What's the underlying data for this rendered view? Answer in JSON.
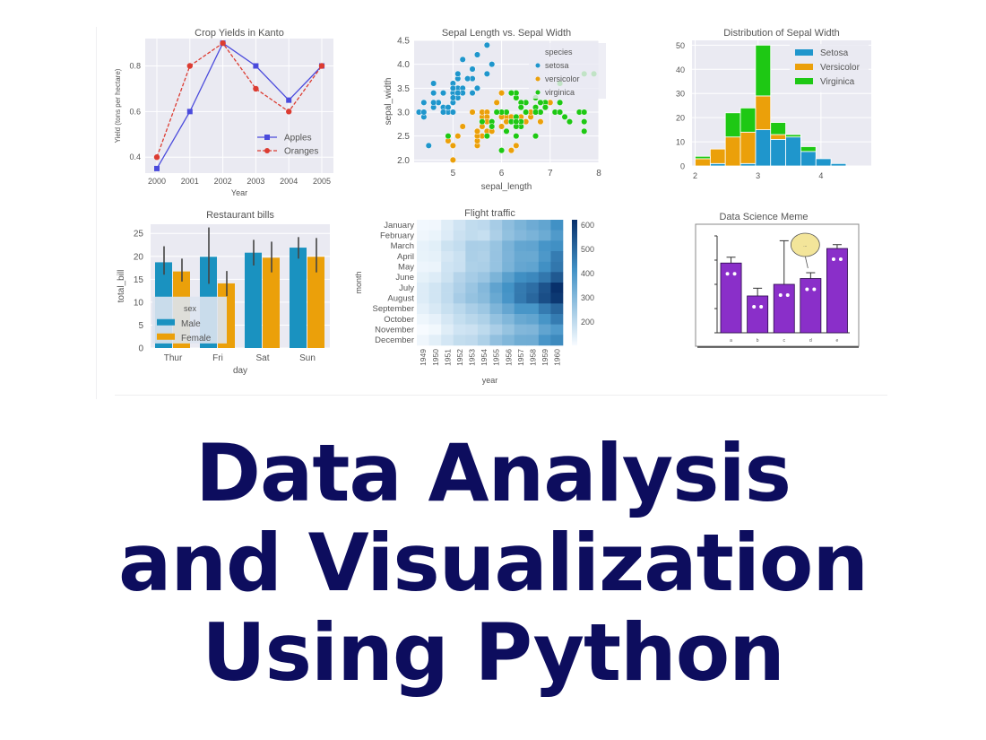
{
  "slide": {
    "title_lines": [
      "Data Analysis",
      "and Visualization",
      "Using Python"
    ],
    "title_color": "#0d0d5e"
  },
  "chart_data": [
    {
      "id": "crop-yields",
      "type": "line",
      "title": "Crop Yields in Kanto",
      "xlabel": "Year",
      "ylabel": "Yield (tons per hectare)",
      "x": [
        2000,
        2001,
        2002,
        2003,
        2004,
        2005
      ],
      "yticks": [
        0.4,
        0.6,
        0.8
      ],
      "ylim": [
        0.33,
        0.92
      ],
      "series": [
        {
          "name": "Apples",
          "values": [
            0.35,
            0.6,
            0.9,
            0.8,
            0.65,
            0.8
          ],
          "color": "#4b4bdc",
          "style": "solid",
          "marker": "s"
        },
        {
          "name": "Oranges",
          "values": [
            0.4,
            0.8,
            0.9,
            0.7,
            0.6,
            0.8
          ],
          "color": "#dc3c32",
          "style": "dashed",
          "marker": "o"
        }
      ],
      "legend_position": "lower right",
      "grid": true
    },
    {
      "id": "sepal-scatter",
      "type": "scatter",
      "title": "Sepal Length vs. Sepal Width",
      "xlabel": "sepal_length",
      "ylabel": "sepal_width",
      "xticks": [
        5,
        6,
        7,
        8
      ],
      "yticks": [
        2.0,
        2.5,
        3.0,
        3.5,
        4.0,
        4.5
      ],
      "xlim": [
        4.2,
        8.0
      ],
      "ylim": [
        1.95,
        4.5
      ],
      "legend_title": "species",
      "legend_position": "upper right",
      "series": [
        {
          "name": "setosa",
          "color": "#1f96cc",
          "points": [
            [
              5.1,
              3.5
            ],
            [
              4.9,
              3.0
            ],
            [
              4.7,
              3.2
            ],
            [
              4.6,
              3.1
            ],
            [
              5.0,
              3.6
            ],
            [
              5.4,
              3.9
            ],
            [
              4.6,
              3.4
            ],
            [
              5.0,
              3.4
            ],
            [
              4.4,
              2.9
            ],
            [
              4.9,
              3.1
            ],
            [
              5.4,
              3.7
            ],
            [
              4.8,
              3.4
            ],
            [
              4.8,
              3.0
            ],
            [
              4.3,
              3.0
            ],
            [
              5.8,
              4.0
            ],
            [
              5.7,
              4.4
            ],
            [
              5.4,
              3.9
            ],
            [
              5.1,
              3.5
            ],
            [
              5.7,
              3.8
            ],
            [
              5.1,
              3.8
            ],
            [
              5.4,
              3.4
            ],
            [
              5.1,
              3.7
            ],
            [
              4.6,
              3.6
            ],
            [
              5.1,
              3.3
            ],
            [
              4.8,
              3.4
            ],
            [
              5.0,
              3.0
            ],
            [
              5.0,
              3.4
            ],
            [
              5.2,
              3.5
            ],
            [
              5.2,
              3.4
            ],
            [
              4.7,
              3.2
            ],
            [
              4.8,
              3.1
            ],
            [
              5.4,
              3.4
            ],
            [
              5.2,
              4.1
            ],
            [
              5.5,
              4.2
            ],
            [
              4.9,
              3.1
            ],
            [
              5.0,
              3.2
            ],
            [
              5.5,
              3.5
            ],
            [
              4.4,
              3.0
            ],
            [
              5.1,
              3.4
            ],
            [
              5.0,
              3.5
            ],
            [
              4.5,
              2.3
            ],
            [
              4.4,
              3.2
            ],
            [
              5.0,
              3.5
            ],
            [
              5.1,
              3.8
            ],
            [
              4.8,
              3.0
            ],
            [
              5.1,
              3.8
            ],
            [
              4.6,
              3.2
            ],
            [
              5.3,
              3.7
            ],
            [
              5.0,
              3.3
            ]
          ]
        },
        {
          "name": "versicolor",
          "color": "#eba00a",
          "points": [
            [
              7.0,
              3.2
            ],
            [
              6.4,
              3.2
            ],
            [
              6.9,
              3.1
            ],
            [
              5.5,
              2.3
            ],
            [
              6.5,
              2.8
            ],
            [
              5.7,
              2.8
            ],
            [
              6.3,
              3.3
            ],
            [
              4.9,
              2.4
            ],
            [
              6.6,
              2.9
            ],
            [
              5.2,
              2.7
            ],
            [
              5.0,
              2.0
            ],
            [
              5.9,
              3.0
            ],
            [
              6.0,
              2.2
            ],
            [
              6.1,
              2.9
            ],
            [
              5.6,
              2.9
            ],
            [
              6.7,
              3.1
            ],
            [
              5.6,
              3.0
            ],
            [
              5.8,
              2.7
            ],
            [
              6.2,
              2.2
            ],
            [
              5.6,
              2.5
            ],
            [
              5.9,
              3.2
            ],
            [
              6.1,
              2.8
            ],
            [
              6.3,
              2.5
            ],
            [
              6.1,
              2.8
            ],
            [
              6.4,
              2.9
            ],
            [
              6.6,
              3.0
            ],
            [
              6.8,
              2.8
            ],
            [
              6.7,
              3.0
            ],
            [
              6.0,
              2.9
            ],
            [
              5.7,
              2.6
            ],
            [
              5.5,
              2.4
            ],
            [
              5.5,
              2.4
            ],
            [
              5.8,
              2.7
            ],
            [
              6.0,
              2.7
            ],
            [
              5.4,
              3.0
            ],
            [
              6.0,
              3.4
            ],
            [
              6.7,
              3.1
            ],
            [
              6.3,
              2.3
            ],
            [
              5.6,
              3.0
            ],
            [
              5.5,
              2.5
            ],
            [
              5.5,
              2.6
            ],
            [
              6.1,
              3.0
            ],
            [
              5.8,
              2.6
            ],
            [
              5.0,
              2.3
            ],
            [
              5.6,
              2.7
            ],
            [
              5.7,
              3.0
            ],
            [
              5.7,
              2.9
            ],
            [
              6.2,
              2.9
            ],
            [
              5.1,
              2.5
            ],
            [
              5.7,
              2.8
            ]
          ]
        },
        {
          "name": "virginica",
          "color": "#1ec814",
          "points": [
            [
              6.3,
              3.3
            ],
            [
              5.8,
              2.7
            ],
            [
              7.1,
              3.0
            ],
            [
              6.3,
              2.9
            ],
            [
              6.5,
              3.0
            ],
            [
              7.6,
              3.0
            ],
            [
              4.9,
              2.5
            ],
            [
              7.3,
              2.9
            ],
            [
              6.7,
              2.5
            ],
            [
              7.2,
              3.6
            ],
            [
              6.5,
              3.2
            ],
            [
              6.4,
              2.7
            ],
            [
              6.8,
              3.0
            ],
            [
              5.7,
              2.5
            ],
            [
              5.8,
              2.8
            ],
            [
              6.4,
              3.2
            ],
            [
              6.5,
              3.0
            ],
            [
              7.7,
              3.8
            ],
            [
              7.7,
              2.6
            ],
            [
              6.0,
              2.2
            ],
            [
              6.9,
              3.2
            ],
            [
              5.6,
              2.8
            ],
            [
              7.7,
              2.8
            ],
            [
              6.3,
              2.7
            ],
            [
              6.7,
              3.3
            ],
            [
              7.2,
              3.2
            ],
            [
              6.2,
              2.8
            ],
            [
              6.1,
              3.0
            ],
            [
              6.4,
              2.8
            ],
            [
              7.2,
              3.0
            ],
            [
              7.4,
              2.8
            ],
            [
              7.9,
              3.8
            ],
            [
              6.4,
              2.8
            ],
            [
              6.3,
              2.8
            ],
            [
              6.1,
              2.6
            ],
            [
              7.7,
              3.0
            ],
            [
              6.3,
              3.4
            ],
            [
              6.4,
              3.1
            ],
            [
              6.0,
              3.0
            ],
            [
              6.9,
              3.1
            ],
            [
              6.7,
              3.1
            ],
            [
              6.9,
              3.1
            ],
            [
              5.8,
              2.7
            ],
            [
              6.8,
              3.2
            ],
            [
              6.7,
              3.3
            ],
            [
              6.7,
              3.0
            ],
            [
              6.3,
              2.5
            ],
            [
              6.5,
              3.0
            ],
            [
              6.2,
              3.4
            ],
            [
              5.9,
              3.0
            ]
          ]
        }
      ]
    },
    {
      "id": "sepal-histogram",
      "type": "bar",
      "stacked": true,
      "title": "Distribution of Sepal Width",
      "xlabel": "",
      "ylabel": "",
      "bin_edges": [
        2.0,
        2.24,
        2.48,
        2.72,
        2.96,
        3.2,
        3.44,
        3.68,
        3.92,
        4.16,
        4.4
      ],
      "xticks": [
        2,
        3,
        4
      ],
      "yticks": [
        0,
        10,
        20,
        30,
        40,
        50
      ],
      "ylim": [
        0,
        52
      ],
      "legend_position": "upper right",
      "series": [
        {
          "name": "Setosa",
          "color": "#1f96cc",
          "values": [
            0,
            1,
            0,
            1,
            15,
            11,
            12,
            6,
            3,
            1
          ]
        },
        {
          "name": "Versicolor",
          "color": "#eba00a",
          "values": [
            3,
            6,
            12,
            13,
            14,
            2,
            0,
            0,
            0,
            0
          ]
        },
        {
          "name": "Virginica",
          "color": "#1ec814",
          "values": [
            1,
            0,
            10,
            10,
            21,
            5,
            1,
            2,
            0,
            0
          ]
        }
      ]
    },
    {
      "id": "restaurant-bills",
      "type": "bar",
      "title": "Restaurant bills",
      "xlabel": "day",
      "ylabel": "total_bill",
      "categories": [
        "Thur",
        "Fri",
        "Sat",
        "Sun"
      ],
      "yticks": [
        0,
        5,
        10,
        15,
        20,
        25
      ],
      "ylim": [
        0,
        27
      ],
      "legend_title": "sex",
      "legend_position": "lower left",
      "series": [
        {
          "name": "Male",
          "color": "#1a92c0",
          "values": [
            18.7,
            19.9,
            20.8,
            21.9
          ],
          "err_low": [
            16.0,
            14.0,
            18.0,
            19.5
          ],
          "err_high": [
            22.2,
            26.3,
            23.6,
            24.2
          ]
        },
        {
          "name": "Female",
          "color": "#eba00a",
          "values": [
            16.7,
            14.1,
            19.7,
            19.9
          ],
          "err_low": [
            14.5,
            11.3,
            16.5,
            16.5
          ],
          "err_high": [
            19.5,
            16.8,
            23.2,
            24.0
          ]
        }
      ]
    },
    {
      "id": "flight-traffic",
      "type": "heatmap",
      "title": "Flight traffic",
      "xlabel": "year",
      "ylabel": "month",
      "x": [
        "1949",
        "1950",
        "1951",
        "1952",
        "1953",
        "1954",
        "1955",
        "1956",
        "1957",
        "1958",
        "1959",
        "1960"
      ],
      "y": [
        "January",
        "February",
        "March",
        "April",
        "May",
        "June",
        "July",
        "August",
        "September",
        "October",
        "November",
        "December"
      ],
      "colorbar_ticks": [
        200,
        300,
        400,
        500,
        600
      ],
      "vmin": 104,
      "vmax": 622,
      "values": [
        [
          112,
          115,
          145,
          171,
          196,
          204,
          242,
          284,
          315,
          340,
          360,
          417
        ],
        [
          118,
          126,
          150,
          180,
          196,
          188,
          233,
          277,
          301,
          318,
          342,
          391
        ],
        [
          132,
          141,
          178,
          193,
          236,
          235,
          267,
          317,
          356,
          362,
          406,
          419
        ],
        [
          129,
          135,
          163,
          181,
          235,
          227,
          269,
          313,
          348,
          348,
          396,
          461
        ],
        [
          121,
          125,
          172,
          183,
          229,
          234,
          270,
          318,
          355,
          363,
          420,
          472
        ],
        [
          135,
          149,
          178,
          218,
          243,
          264,
          315,
          374,
          422,
          435,
          472,
          535
        ],
        [
          148,
          170,
          199,
          230,
          264,
          302,
          364,
          413,
          465,
          491,
          548,
          622
        ],
        [
          148,
          170,
          199,
          242,
          272,
          293,
          347,
          405,
          467,
          505,
          559,
          606
        ],
        [
          136,
          158,
          184,
          209,
          237,
          259,
          312,
          355,
          404,
          404,
          463,
          508
        ],
        [
          119,
          133,
          162,
          191,
          211,
          229,
          274,
          306,
          347,
          359,
          407,
          461
        ],
        [
          104,
          114,
          146,
          172,
          180,
          203,
          237,
          271,
          305,
          310,
          362,
          390
        ],
        [
          118,
          140,
          166,
          194,
          201,
          229,
          278,
          306,
          336,
          337,
          405,
          432
        ]
      ]
    },
    {
      "id": "data-science-meme",
      "type": "bar",
      "title": "Data Science Meme",
      "categories": [
        "a",
        "b",
        "c",
        "d",
        "e"
      ],
      "ylim": [
        0,
        100
      ],
      "color": "#8a2fc9",
      "values": [
        72,
        38,
        50,
        56,
        87
      ],
      "err_high": [
        78,
        46,
        95,
        62,
        91
      ],
      "speech_bubble": "..."
    }
  ]
}
